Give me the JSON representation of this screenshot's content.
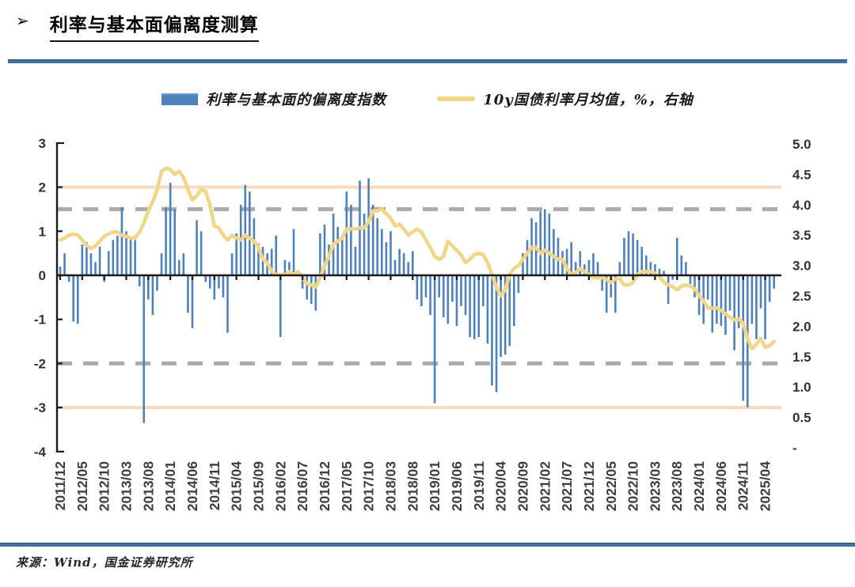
{
  "header": {
    "bullet": "➢",
    "title": "利率与基本面偏离度测算"
  },
  "legend": {
    "items": [
      {
        "label": "利率与基本面的偏离度指数",
        "swatch": "bar",
        "color": "#4f81bd"
      },
      {
        "label": "10y国债利率月均值，%，右轴",
        "swatch": "line",
        "color": "#f1d687"
      }
    ]
  },
  "footer": {
    "source": "来源：Wind，国金证券研究所"
  },
  "colors": {
    "bar": "#4f81bd",
    "line": "#f1d687",
    "band_solid": "#f8d9bb",
    "band_dashed": "#ababab",
    "axis": "#1a1a1a",
    "tick_text": "#3f3f3f",
    "rule_blue": "#41719c"
  },
  "chart_data": {
    "type": "bar",
    "title": "利率与基本面偏离度测算",
    "x_start": "2011/12",
    "x_tick_every": 5,
    "x_tick_labels": [
      "2011/12",
      "2012/05",
      "2012/10",
      "2013/03",
      "2013/08",
      "2014/01",
      "2014/06",
      "2014/11",
      "2015/04",
      "2015/09",
      "2016/02",
      "2016/07",
      "2016/12",
      "2017/05",
      "2017/10",
      "2018/03",
      "2018/08",
      "2019/01",
      "2019/06",
      "2019/11",
      "2020/04",
      "2020/09",
      "2021/02",
      "2021/07",
      "2021/12",
      "2022/05",
      "2022/10",
      "2023/03",
      "2023/08",
      "2024/01",
      "2024/06",
      "2024/11",
      "2025/04"
    ],
    "left_axis": {
      "ticks": [
        3,
        2,
        1,
        0,
        -1,
        -2,
        -3,
        -4
      ],
      "range": [
        -4,
        3
      ]
    },
    "right_axis": {
      "ticks": [
        {
          "label": "5.0",
          "value": 5.0
        },
        {
          "label": "4.5",
          "value": 4.5
        },
        {
          "label": "4.0",
          "value": 4.0
        },
        {
          "label": "3.5",
          "value": 3.5
        },
        {
          "label": "3.0",
          "value": 3.0
        },
        {
          "label": "2.5",
          "value": 2.5
        },
        {
          "label": "2.0",
          "value": 2.0
        },
        {
          "label": "1.5",
          "value": 1.5
        },
        {
          "label": "1.0",
          "value": 1.0
        },
        {
          "label": "0.5",
          "value": 0.5
        },
        {
          "label": "-",
          "value": 0
        }
      ],
      "range": [
        0,
        5
      ]
    },
    "ref_lines": [
      {
        "axis": "left",
        "value": 2,
        "style": "solid",
        "color": "#f8d9bb"
      },
      {
        "axis": "left",
        "value": 1.5,
        "style": "dashed",
        "color": "#ababab"
      },
      {
        "axis": "left",
        "value": -2,
        "style": "dashed",
        "color": "#ababab"
      },
      {
        "axis": "left",
        "value": -3,
        "style": "solid",
        "color": "#f8d9bb"
      }
    ],
    "grid": false,
    "legend_position": "top",
    "series": [
      {
        "name": "利率与基本面的偏离度指数",
        "type": "bar",
        "axis": "left",
        "color": "#4f81bd",
        "values": [
          0.2,
          0.5,
          -0.15,
          -1.05,
          -1.1,
          0.7,
          0.75,
          0.5,
          0.3,
          0.65,
          -0.15,
          0.55,
          0.8,
          0.9,
          1.55,
          1.0,
          0.85,
          0.8,
          -0.25,
          -3.35,
          -0.55,
          -0.9,
          -0.35,
          0.5,
          1.55,
          2.1,
          1.5,
          0.35,
          0.5,
          -0.85,
          -1.2,
          1.25,
          1.0,
          -0.15,
          -0.3,
          -0.55,
          -0.3,
          -0.5,
          -1.3,
          0.5,
          0.95,
          1.6,
          2.05,
          1.9,
          1.3,
          0.72,
          0.65,
          0.5,
          0.6,
          0.9,
          -1.4,
          0.35,
          0.3,
          1.05,
          0.1,
          -0.3,
          -0.55,
          -0.65,
          -0.8,
          0.95,
          1.15,
          0.7,
          1.4,
          1.1,
          0.9,
          1.9,
          1.6,
          0.65,
          2.15,
          1.4,
          2.2,
          1.6,
          1.3,
          1.05,
          0.75,
          1.0,
          0.35,
          0.6,
          0.5,
          0.3,
          0.55,
          -0.55,
          -0.7,
          -0.5,
          -0.9,
          -2.9,
          -0.5,
          -0.95,
          -1.1,
          -0.6,
          -1.15,
          -0.7,
          -0.9,
          -1.4,
          -1.45,
          -1.4,
          -0.7,
          -1.55,
          -2.5,
          -2.65,
          -1.85,
          -1.8,
          -1.6,
          -1.15,
          -0.4,
          0.5,
          0.8,
          1.3,
          1.2,
          1.45,
          1.5,
          1.4,
          1.05,
          0.85,
          0.55,
          0.6,
          0.75,
          0.3,
          0.55,
          0.25,
          0.35,
          0.5,
          0.3,
          -0.35,
          -0.85,
          -0.5,
          -0.85,
          0.3,
          0.85,
          1.0,
          0.95,
          0.8,
          0.65,
          0.45,
          0.3,
          0.25,
          0.15,
          0.1,
          -0.65,
          -0.1,
          0.85,
          0.45,
          0.3,
          -0.2,
          -0.5,
          -0.9,
          -1.1,
          -0.55,
          -1.3,
          -1.1,
          -1.15,
          -1.35,
          -0.8,
          -1.7,
          -1.2,
          -2.85,
          -3.0,
          -1.1,
          -1.45,
          -0.75,
          -1.45,
          -0.6,
          -0.3
        ]
      },
      {
        "name": "10y国债利率月均值，%，右轴",
        "type": "line",
        "axis": "right",
        "color": "#f1d687",
        "values": [
          3.42,
          3.45,
          3.5,
          3.52,
          3.5,
          3.42,
          3.33,
          3.28,
          3.32,
          3.4,
          3.48,
          3.52,
          3.55,
          3.55,
          3.5,
          3.48,
          3.45,
          3.45,
          3.55,
          3.7,
          3.9,
          4.05,
          4.25,
          4.55,
          4.6,
          4.58,
          4.5,
          4.55,
          4.45,
          4.25,
          4.08,
          4.15,
          4.25,
          4.22,
          4.0,
          3.65,
          3.62,
          3.5,
          3.42,
          3.5,
          3.45,
          3.42,
          3.5,
          3.45,
          3.4,
          3.3,
          3.1,
          3.05,
          2.9,
          2.85,
          2.85,
          2.85,
          2.9,
          2.85,
          2.9,
          2.8,
          2.7,
          2.68,
          2.65,
          2.8,
          3.0,
          3.15,
          3.35,
          3.4,
          3.45,
          3.6,
          3.6,
          3.6,
          3.62,
          3.62,
          3.72,
          3.9,
          3.9,
          3.93,
          3.85,
          3.78,
          3.65,
          3.68,
          3.6,
          3.5,
          3.55,
          3.6,
          3.55,
          3.42,
          3.3,
          3.15,
          3.1,
          3.15,
          3.4,
          3.32,
          3.25,
          3.17,
          3.05,
          3.1,
          3.18,
          3.2,
          3.18,
          3.05,
          2.85,
          2.65,
          2.5,
          2.6,
          2.85,
          2.95,
          3.0,
          3.1,
          3.2,
          3.3,
          3.3,
          3.2,
          3.25,
          3.2,
          3.15,
          3.1,
          3.1,
          2.95,
          2.85,
          2.88,
          2.95,
          2.9,
          2.85,
          2.8,
          2.8,
          2.8,
          2.77,
          2.72,
          2.78,
          2.78,
          2.68,
          2.68,
          2.72,
          2.85,
          2.9,
          2.9,
          2.9,
          2.87,
          2.82,
          2.72,
          2.68,
          2.65,
          2.6,
          2.66,
          2.68,
          2.66,
          2.62,
          2.5,
          2.42,
          2.3,
          2.3,
          2.3,
          2.26,
          2.2,
          2.15,
          2.1,
          2.12,
          2.05,
          1.8,
          1.63,
          1.7,
          1.8,
          1.65,
          1.68,
          1.75
        ]
      }
    ]
  }
}
